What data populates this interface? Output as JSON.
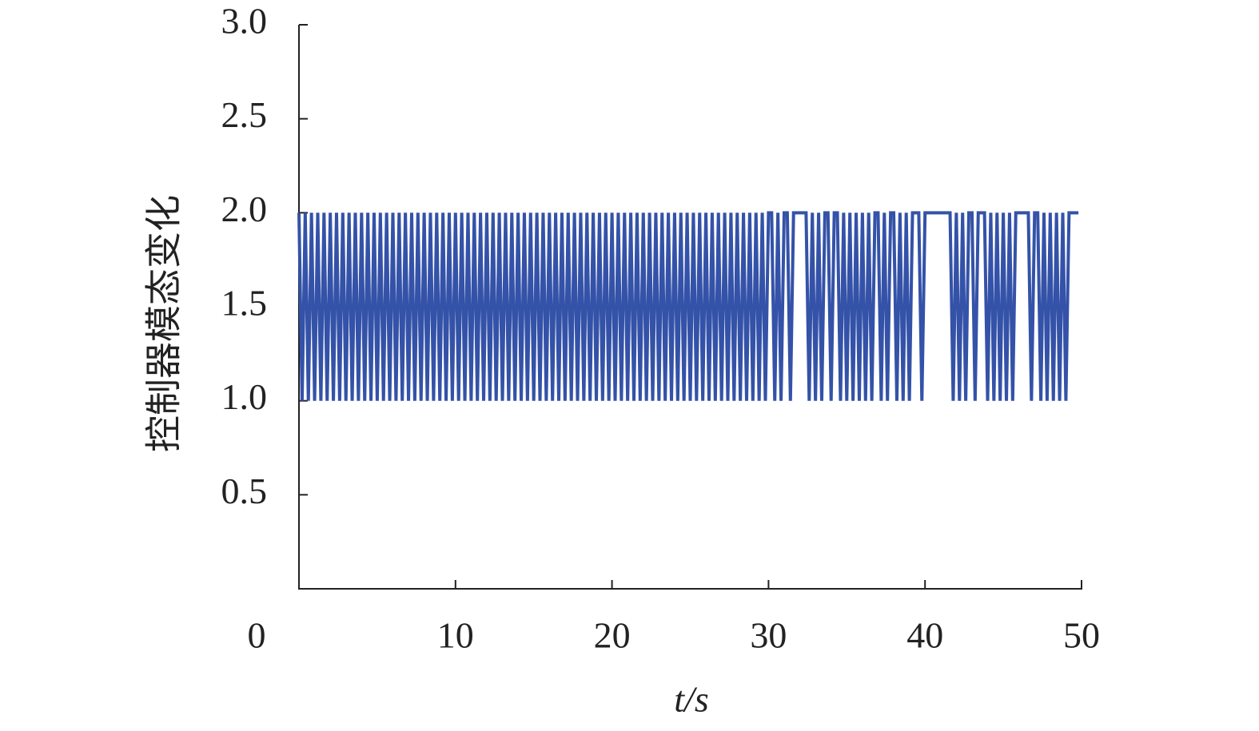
{
  "chart_data": {
    "type": "line",
    "ylabel": "控制器模态变化",
    "xlabel": "t/s",
    "xlim": [
      0,
      50
    ],
    "xticks": [
      0,
      10,
      20,
      30,
      40,
      50
    ],
    "ylim": [
      0,
      3
    ],
    "yticks": [
      {
        "value": 0.5,
        "label": "0.5"
      },
      {
        "value": 1,
        "label": "1.0"
      },
      {
        "value": 1.5,
        "label": "1.5"
      },
      {
        "value": 2,
        "label": "2.0"
      },
      {
        "value": 2.5,
        "label": "2.5"
      },
      {
        "value": 3,
        "label": "3.0"
      }
    ],
    "x": [
      0,
      0.2,
      0.4,
      0.6,
      0.8,
      1,
      1.2,
      1.4,
      1.6,
      1.8,
      2,
      2.2,
      2.4,
      2.6,
      2.8,
      3,
      3.2,
      3.4,
      3.6,
      3.8,
      4,
      4.2,
      4.4,
      4.6,
      4.8,
      5,
      5.2,
      5.4,
      5.6,
      5.8,
      6,
      6.2,
      6.4,
      6.6,
      6.8,
      7,
      7.2,
      7.4,
      7.6,
      7.8,
      8,
      8.2,
      8.4,
      8.6,
      8.8,
      9,
      9.2,
      9.4,
      9.6,
      9.8,
      10,
      10.2,
      10.4,
      10.6,
      10.8,
      11,
      11.2,
      11.4,
      11.6,
      11.8,
      12,
      12.2,
      12.4,
      12.6,
      12.8,
      13,
      13.2,
      13.4,
      13.6,
      13.8,
      14,
      14.2,
      14.4,
      14.6,
      14.8,
      15,
      15.2,
      15.4,
      15.6,
      15.8,
      16,
      16.2,
      16.4,
      16.6,
      16.8,
      17,
      17.2,
      17.4,
      17.6,
      17.8,
      18,
      18.2,
      18.4,
      18.6,
      18.8,
      19,
      19.2,
      19.4,
      19.6,
      19.8,
      20,
      20.2,
      20.4,
      20.6,
      20.8,
      21,
      21.2,
      21.4,
      21.6,
      21.8,
      22,
      22.2,
      22.4,
      22.6,
      22.8,
      23,
      23.2,
      23.4,
      23.6,
      23.8,
      24,
      24.2,
      24.4,
      24.6,
      24.8,
      25,
      25.2,
      25.4,
      25.6,
      25.8,
      26,
      26.2,
      26.4,
      26.6,
      26.8,
      27,
      27.2,
      27.4,
      27.6,
      27.8,
      28,
      28.2,
      28.4,
      28.6,
      28.8,
      29,
      29.2,
      29.4,
      29.6,
      29.8,
      30,
      30.2,
      30.4,
      30.6,
      30.8,
      31,
      31.2,
      31.4,
      31.6,
      31.8,
      32,
      32.2,
      32.4,
      32.6,
      32.8,
      33,
      33.2,
      33.4,
      33.6,
      33.8,
      34,
      34.2,
      34.4,
      34.6,
      34.8,
      35,
      35.2,
      35.4,
      35.6,
      35.8,
      36,
      36.2,
      36.4,
      36.6,
      36.8,
      37,
      37.2,
      37.4,
      37.6,
      37.8,
      38,
      38.2,
      38.4,
      38.6,
      38.8,
      39,
      39.2,
      39.4,
      39.6,
      39.8,
      40,
      40.2,
      40.4,
      40.6,
      40.8,
      41,
      41.2,
      41.4,
      41.6,
      41.8,
      42,
      42.2,
      42.4,
      42.6,
      42.8,
      43,
      43.2,
      43.4,
      43.6,
      43.8,
      44,
      44.2,
      44.4,
      44.6,
      44.8,
      45,
      45.2,
      45.4,
      45.6,
      45.8,
      46,
      46.2,
      46.4,
      46.6,
      46.8,
      47,
      47.2,
      47.4,
      47.6,
      47.8,
      48,
      48.2,
      48.4,
      48.6,
      48.8,
      49,
      49.2,
      49.4,
      49.6,
      49.8
    ],
    "series": [
      {
        "color": "#3452a8",
        "values": [
          2,
          1,
          2,
          1,
          2,
          1,
          2,
          1,
          2,
          1,
          2,
          1,
          2,
          1,
          2,
          1,
          2,
          1,
          2,
          1,
          2,
          1,
          2,
          1,
          2,
          1,
          2,
          1,
          2,
          1,
          2,
          1,
          2,
          1,
          2,
          1,
          2,
          1,
          2,
          1,
          2,
          1,
          2,
          1,
          2,
          1,
          2,
          1,
          2,
          1,
          2,
          1,
          2,
          1,
          2,
          1,
          2,
          1,
          2,
          1,
          2,
          1,
          2,
          1,
          2,
          1,
          2,
          1,
          2,
          1,
          2,
          1,
          2,
          1,
          2,
          1,
          2,
          1,
          2,
          1,
          2,
          1,
          2,
          1,
          2,
          1,
          2,
          1,
          2,
          1,
          2,
          1,
          2,
          1,
          2,
          1,
          2,
          1,
          2,
          1,
          2,
          1,
          2,
          1,
          2,
          1,
          2,
          1,
          2,
          1,
          2,
          1,
          2,
          1,
          2,
          1,
          2,
          1,
          2,
          1,
          2,
          1,
          2,
          1,
          2,
          1,
          2,
          1,
          2,
          1,
          2,
          1,
          2,
          1,
          2,
          1,
          2,
          1,
          2,
          1,
          2,
          1,
          2,
          1,
          2,
          1,
          2,
          1,
          2,
          1,
          2,
          2,
          1,
          2,
          1,
          2,
          2,
          1,
          2,
          2,
          2,
          2,
          2,
          1,
          2,
          1,
          2,
          1,
          2,
          2,
          1,
          2,
          2,
          1,
          2,
          1,
          2,
          1,
          2,
          1,
          2,
          1,
          2,
          1,
          2,
          2,
          1,
          2,
          1,
          2,
          2,
          1,
          2,
          1,
          2,
          1,
          2,
          2,
          2,
          1,
          2,
          2,
          2,
          2,
          2,
          2,
          2,
          2,
          2,
          1,
          2,
          1,
          2,
          1,
          2,
          2,
          1,
          2,
          2,
          2,
          1,
          2,
          1,
          2,
          1,
          2,
          1,
          2,
          1,
          2,
          2,
          2,
          2,
          2,
          1,
          2,
          2,
          1,
          2,
          1,
          2,
          1,
          2,
          1,
          2,
          1,
          2,
          2,
          2,
          2
        ]
      }
    ]
  }
}
